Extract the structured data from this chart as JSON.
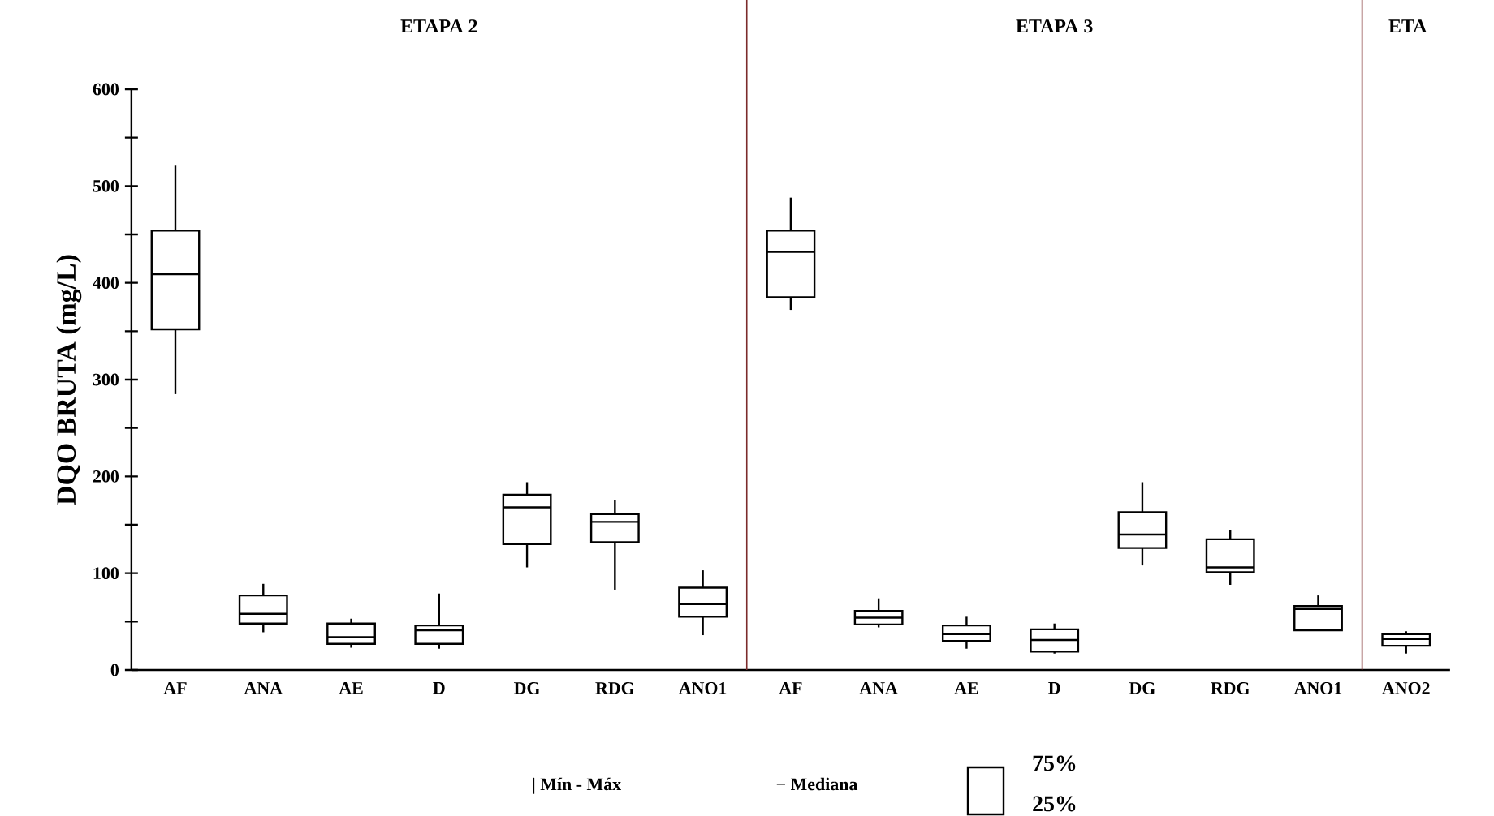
{
  "chart_data": {
    "type": "box",
    "ylabel": "DQO BRUTA (mg/L)",
    "categories": [
      "AF",
      "ANA",
      "AE",
      "D",
      "DG",
      "RDG",
      "ANO1",
      "AF",
      "ANA",
      "AE",
      "D",
      "DG",
      "RDG",
      "ANO1",
      "ANO2"
    ],
    "color": "#000000",
    "boxes": [
      {
        "low": 285,
        "q1": 352,
        "median": 409,
        "q3": 454,
        "high": 521
      },
      {
        "low": 39,
        "q1": 48,
        "median": 58,
        "q3": 77,
        "high": 89
      },
      {
        "low": 23,
        "q1": 27,
        "median": 34,
        "q3": 48,
        "high": 53
      },
      {
        "low": 22,
        "q1": 27,
        "median": 41,
        "q3": 46,
        "high": 79
      },
      {
        "low": 106,
        "q1": 130,
        "median": 168,
        "q3": 181,
        "high": 194
      },
      {
        "low": 83,
        "q1": 132,
        "median": 153,
        "q3": 161,
        "high": 176
      },
      {
        "low": 36,
        "q1": 55,
        "median": 68,
        "q3": 85,
        "high": 103
      },
      {
        "low": 372,
        "q1": 385,
        "median": 432,
        "q3": 454,
        "high": 488
      },
      {
        "low": 44,
        "q1": 47,
        "median": 54,
        "q3": 61,
        "high": 74
      },
      {
        "low": 22,
        "q1": 30,
        "median": 37,
        "q3": 46,
        "high": 55
      },
      {
        "low": 17,
        "q1": 19,
        "median": 31,
        "q3": 42,
        "high": 48
      },
      {
        "low": 108,
        "q1": 126,
        "median": 140,
        "q3": 163,
        "high": 194
      },
      {
        "low": 88,
        "q1": 101,
        "median": 106,
        "q3": 135,
        "high": 145
      },
      {
        "low": 41,
        "q1": 41,
        "median": 63,
        "q3": 66,
        "high": 77
      },
      {
        "low": 17,
        "q1": 25,
        "median": 32,
        "q3": 37,
        "high": 40
      }
    ],
    "ylim": [
      0,
      600
    ],
    "yticks": [
      0,
      {
        "value": 50,
        "label": null
      },
      100,
      {
        "value": 150,
        "label": null
      },
      200,
      {
        "value": 250,
        "label": null
      },
      300,
      {
        "value": 350,
        "label": null
      },
      400,
      {
        "value": 450,
        "label": null
      },
      500,
      {
        "value": 550,
        "label": null
      },
      600
    ],
    "grid": false,
    "annotations": [
      "ETAPA 2",
      "ETAPA 3",
      "ETA",
      "| Mín - Máx",
      "− Mediana",
      "75%",
      "25%"
    ]
  }
}
